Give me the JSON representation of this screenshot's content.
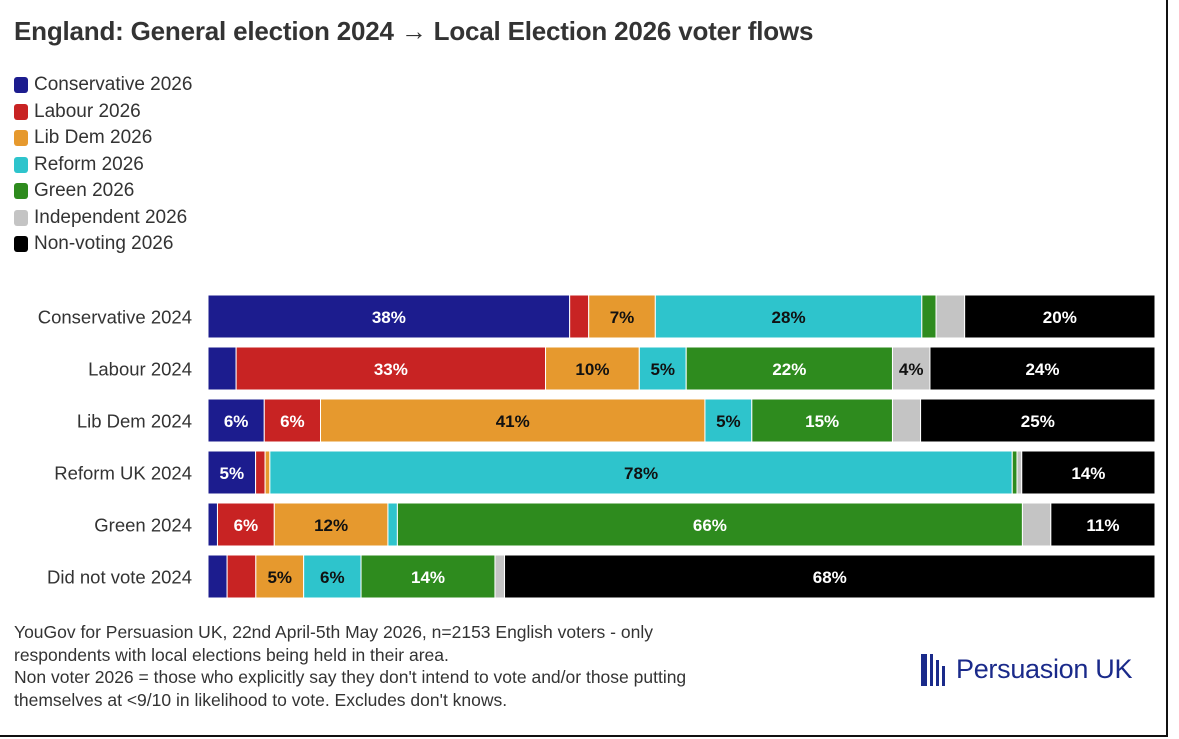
{
  "chart_data": {
    "type": "bar",
    "orientation": "horizontal",
    "stacked": true,
    "normalized": true,
    "title": "England: General election 2024 → Local Election 2026 voter flows",
    "categories": [
      "Conservative 2024",
      "Labour 2024",
      "Lib Dem 2024",
      "Reform UK 2024",
      "Green 2024",
      "Did not vote 2024"
    ],
    "series": [
      {
        "name": "Conservative 2026",
        "color": "#1c1c8e",
        "values": [
          38,
          3,
          6,
          5,
          1,
          2
        ]
      },
      {
        "name": "Labour 2026",
        "color": "#c82323",
        "values": [
          2,
          33,
          6,
          1,
          6,
          3
        ]
      },
      {
        "name": "Lib Dem 2026",
        "color": "#e6992e",
        "values": [
          7,
          10,
          41,
          0.5,
          12,
          5
        ]
      },
      {
        "name": "Reform 2026",
        "color": "#2ec4cc",
        "values": [
          28,
          5,
          5,
          78,
          1,
          6
        ]
      },
      {
        "name": "Green 2026",
        "color": "#2e8b1e",
        "values": [
          1.5,
          22,
          15,
          0.5,
          66,
          14
        ]
      },
      {
        "name": "Independent 2026",
        "color": "#c4c4c4",
        "values": [
          3,
          4,
          3,
          0.5,
          3,
          1
        ]
      },
      {
        "name": "Non-voting 2026",
        "color": "#000000",
        "values": [
          20,
          24,
          25,
          14,
          11,
          68
        ]
      }
    ],
    "data_labels": [
      [
        {
          "series": 0,
          "text": "38%"
        },
        {
          "series": 2,
          "text": "7%"
        },
        {
          "series": 3,
          "text": "28%"
        },
        {
          "series": 6,
          "text": "20%"
        }
      ],
      [
        {
          "series": 1,
          "text": "33%"
        },
        {
          "series": 2,
          "text": "10%"
        },
        {
          "series": 3,
          "text": "5%"
        },
        {
          "series": 4,
          "text": "22%"
        },
        {
          "series": 5,
          "text": "4%"
        },
        {
          "series": 6,
          "text": "24%"
        }
      ],
      [
        {
          "series": 0,
          "text": "6%"
        },
        {
          "series": 1,
          "text": "6%"
        },
        {
          "series": 2,
          "text": "41%"
        },
        {
          "series": 3,
          "text": "5%"
        },
        {
          "series": 4,
          "text": "15%"
        },
        {
          "series": 6,
          "text": "25%"
        }
      ],
      [
        {
          "series": 0,
          "text": "5%"
        },
        {
          "series": 3,
          "text": "78%"
        },
        {
          "series": 6,
          "text": "14%"
        }
      ],
      [
        {
          "series": 1,
          "text": "6%"
        },
        {
          "series": 2,
          "text": "12%"
        },
        {
          "series": 4,
          "text": "66%"
        },
        {
          "series": 6,
          "text": "11%"
        }
      ],
      [
        {
          "series": 2,
          "text": "5%"
        },
        {
          "series": 3,
          "text": "6%"
        },
        {
          "series": 4,
          "text": "14%"
        },
        {
          "series": 6,
          "text": "68%"
        }
      ]
    ],
    "legend_position": "top-left",
    "grid": false
  },
  "footnote": {
    "lines": [
      "YouGov for Persuasion UK, 22nd April-5th May 2026, n=2153 English voters - only",
      "respondents with local elections being held in their area.",
      "Non voter 2026 = those who explicitly say they don't intend to vote and/or those putting",
      "themselves at <9/10 in likelihood to vote. Excludes don't knows."
    ]
  },
  "brand": {
    "name": "Persuasion UK",
    "color": "#1a2a8a"
  }
}
